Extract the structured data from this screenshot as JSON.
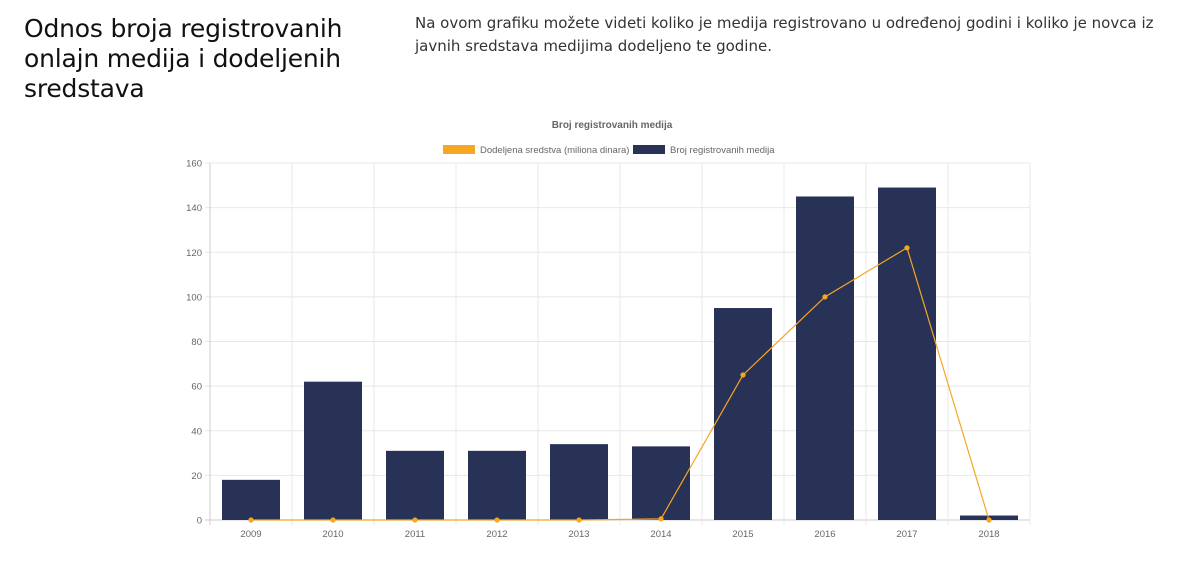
{
  "header": {
    "title": "Odnos broja registrovanih onlajn medija i dodeljenih sredstava",
    "description": "Na ovom grafiku možete videti koliko je medija registrovano u određenoj godini i koliko je novca iz javnih sredstava medijima dodeljeno te godine."
  },
  "chart_data": {
    "type": "bar",
    "title": "Broj registrovanih medija",
    "categories": [
      "2009",
      "2010",
      "2011",
      "2012",
      "2013",
      "2014",
      "2015",
      "2016",
      "2017",
      "2018"
    ],
    "series": [
      {
        "name": "Dodeljena sredstva (miliona dinara)",
        "type": "line",
        "color": "#f5a623",
        "values": [
          0,
          0,
          0,
          0,
          0,
          0.5,
          65,
          100,
          122,
          0
        ]
      },
      {
        "name": "Broj registrovanih medija",
        "type": "bar",
        "color": "#283257",
        "values": [
          18,
          62,
          31,
          31,
          34,
          33,
          95,
          145,
          149,
          2
        ]
      }
    ],
    "ylim": [
      0,
      160
    ],
    "yticks": [
      "0",
      "20",
      "40",
      "60",
      "80",
      "100",
      "120",
      "140",
      "160"
    ],
    "legend_position": "top",
    "grid": true,
    "xlabel": "",
    "ylabel": ""
  }
}
